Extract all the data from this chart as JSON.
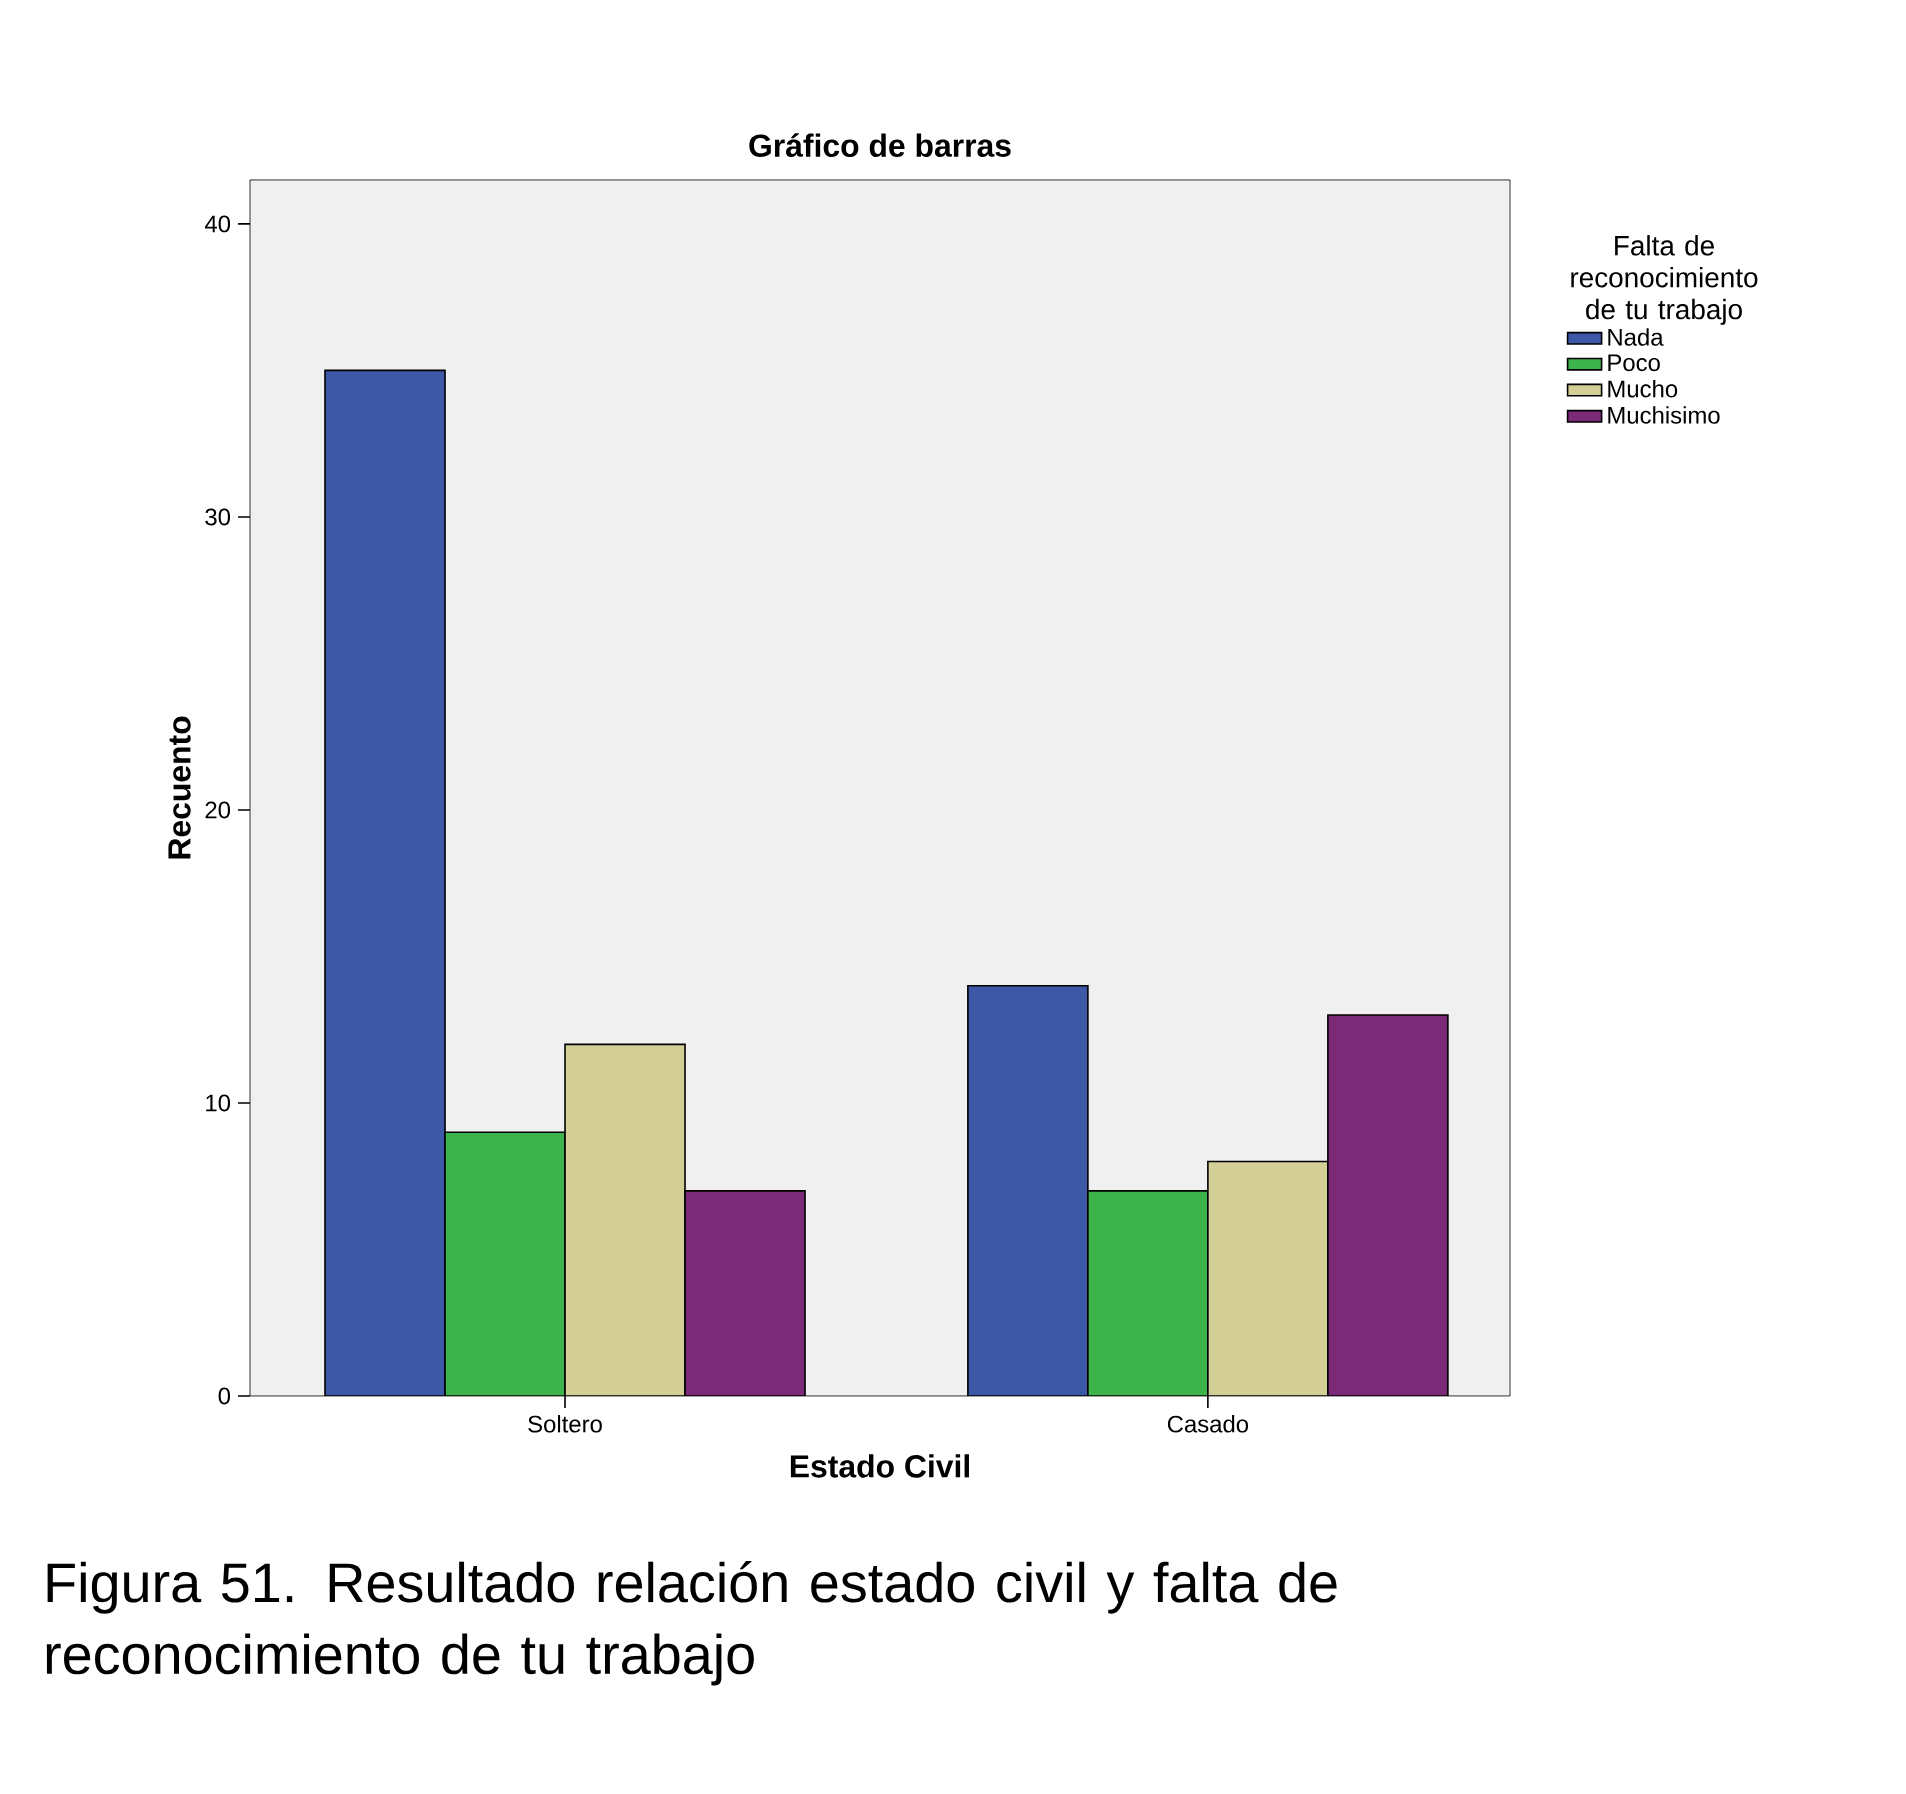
{
  "chart_data": {
    "type": "bar",
    "title": "Gráfico de barras",
    "xlabel": "Estado Civil",
    "ylabel": "Recuento",
    "legend_title": "Falta de reconocimiento de tu trabajo",
    "categories": [
      "Soltero",
      "Casado"
    ],
    "series": [
      {
        "name": "Nada",
        "color": "#3e58a8",
        "values": [
          35,
          14
        ]
      },
      {
        "name": "Poco",
        "color": "#3cb44b",
        "values": [
          9,
          7
        ]
      },
      {
        "name": "Mucho",
        "color": "#d4cf96",
        "values": [
          12,
          8
        ]
      },
      {
        "name": "Muchisimo",
        "color": "#7b2a77",
        "values": [
          7,
          13
        ]
      }
    ],
    "ylim": [
      0,
      41.5
    ],
    "yticks": [
      0,
      10,
      20,
      30,
      40
    ],
    "grid": false,
    "legend": "right",
    "annotations": [
      "Figura 51. Resultado relación estado civil y falta de reconocimiento de tu trabajo"
    ]
  }
}
